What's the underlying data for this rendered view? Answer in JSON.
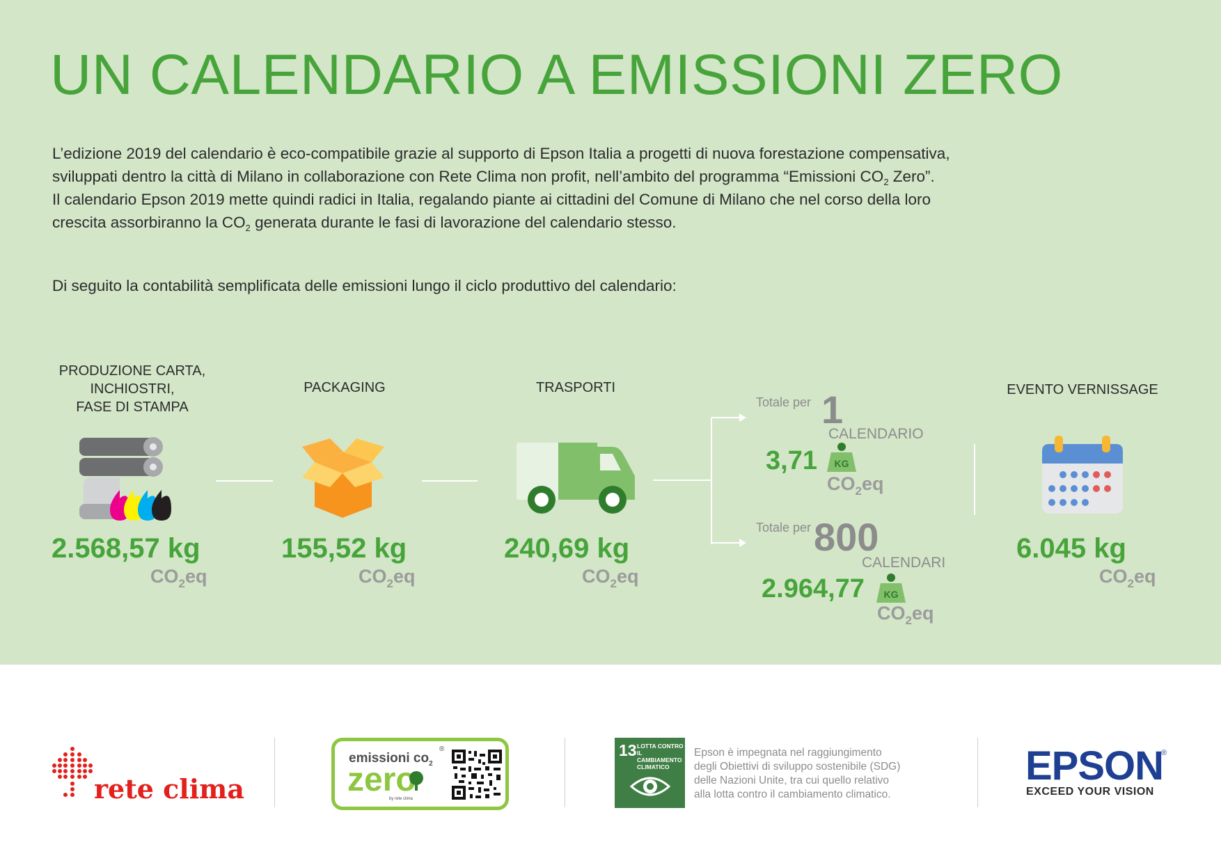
{
  "header": {
    "title": "UN CALENDARIO A EMISSIONI ZERO"
  },
  "intro": {
    "p1": "L’edizione 2019 del calendario è eco-compatibile grazie al supporto di Epson Italia a progetti di nuova forestazione compensativa,",
    "p2a": "sviluppati dentro la città di Milano in collaborazione con Rete Clima non profit, nell’ambito del programma “Emissioni CO",
    "p2b": " Zero”.",
    "p3": "Il calendario Epson 2019 mette quindi radici in Italia, regalando piante ai cittadini del Comune di Milano che nel corso della loro",
    "p4a": "crescita assorbiranno la CO",
    "p4b": " generata durante le fasi di lavorazione del calendario stesso.",
    "sub2": "2",
    "lead": "Di seguito la contabilità semplificata delle emissioni lungo il ciclo produttivo del calendario:"
  },
  "stages": [
    {
      "label_l1": "PRODUZIONE CARTA,",
      "label_l2": "INCHIOSTRI,",
      "label_l3": "FASE DI STAMPA",
      "value": "2.568,57 kg",
      "unit_a": "CO",
      "unit_sub": "2",
      "unit_b": "eq",
      "icon": "printing-rollers-ink-icon"
    },
    {
      "label_l1": "PACKAGING",
      "value": "155,52 kg",
      "unit_a": "CO",
      "unit_sub": "2",
      "unit_b": "eq",
      "icon": "open-box-icon"
    },
    {
      "label_l1": "TRASPORTI",
      "value": "240,69 kg",
      "unit_a": "CO",
      "unit_sub": "2",
      "unit_b": "eq",
      "icon": "delivery-truck-icon"
    }
  ],
  "totals": {
    "one": {
      "prefix": "Totale per",
      "number": "1",
      "caption": "CALENDARIO",
      "value": "3,71",
      "unit_a": "CO",
      "unit_sub": "2",
      "unit_b": "eq",
      "weight_label": "KG"
    },
    "many": {
      "prefix": "Totale per",
      "number": "800",
      "caption": "CALENDARI",
      "value": "2.964,77",
      "unit_a": "CO",
      "unit_sub": "2",
      "unit_b": "eq",
      "weight_label": "KG"
    }
  },
  "event": {
    "label": "EVENTO VERNISSAGE",
    "value": "6.045 kg",
    "unit_a": "CO",
    "unit_sub": "2",
    "unit_b": "eq",
    "icon": "calendar-icon"
  },
  "footer": {
    "retes_clima": "rete clima",
    "emissioni_top": "emissioni co",
    "emissioni_sub": "2",
    "emissioni_zero": "zero",
    "emissioni_by": "by rete clima",
    "sdg_number": "13",
    "sdg_l1": "LOTTA CONTRO",
    "sdg_l2": "IL CAMBIAMENTO",
    "sdg_l3": "CLIMATICO",
    "sdg_text_l1": "Epson è impegnata nel raggiungimento",
    "sdg_text_l2": "degli Obiettivi di sviluppo sostenibile (SDG)",
    "sdg_text_l3": "delle Nazioni Unite, tra cui quello relativo",
    "sdg_text_l4": "alla lotta contro il cambiamento climatico.",
    "epson": "EPSON",
    "epson_reg": "®",
    "epson_tagline": "EXCEED YOUR VISION"
  },
  "colors": {
    "accent_green": "#47a43b",
    "bg_green": "#d3e6c8",
    "grey": "#8c8c8c",
    "epson_blue": "#1f3f92",
    "rete_red": "#e3201b"
  }
}
